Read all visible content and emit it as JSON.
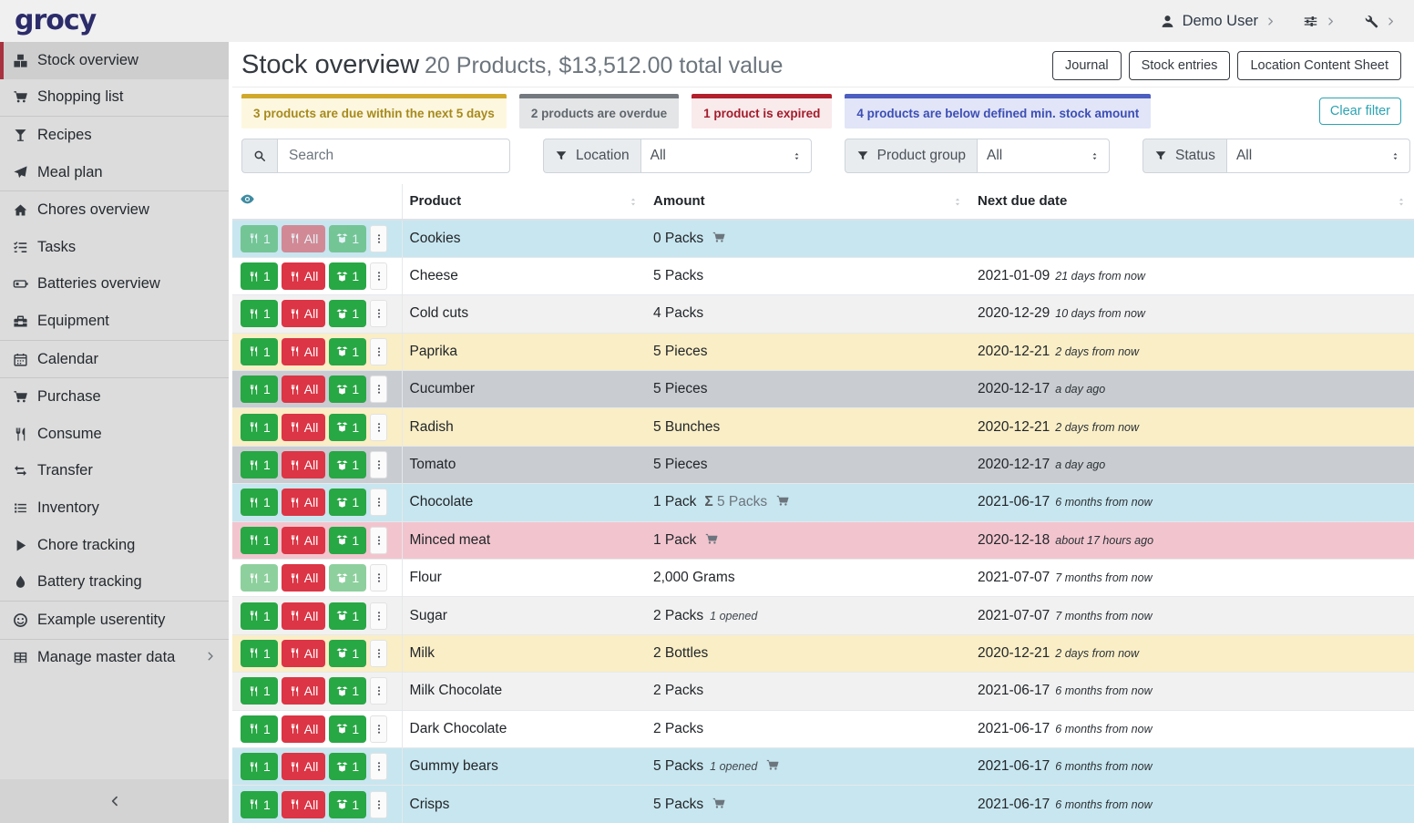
{
  "navbar": {
    "logo": "grocy",
    "user": "Demo User"
  },
  "sidebar": {
    "groups": [
      [
        {
          "label": "Stock overview",
          "icon": "boxes",
          "active": true
        },
        {
          "label": "Shopping list",
          "icon": "cart"
        }
      ],
      [
        {
          "label": "Recipes",
          "icon": "martini"
        },
        {
          "label": "Meal plan",
          "icon": "plane"
        }
      ],
      [
        {
          "label": "Chores overview",
          "icon": "home"
        },
        {
          "label": "Tasks",
          "icon": "tasks"
        },
        {
          "label": "Batteries overview",
          "icon": "battery"
        },
        {
          "label": "Equipment",
          "icon": "toolbox"
        }
      ],
      [
        {
          "label": "Calendar",
          "icon": "calendar"
        }
      ],
      [
        {
          "label": "Purchase",
          "icon": "cart"
        },
        {
          "label": "Consume",
          "icon": "utensils"
        },
        {
          "label": "Transfer",
          "icon": "transfer"
        },
        {
          "label": "Inventory",
          "icon": "list"
        },
        {
          "label": "Chore tracking",
          "icon": "play"
        },
        {
          "label": "Battery tracking",
          "icon": "drop"
        }
      ],
      [
        {
          "label": "Example userentity",
          "icon": "smiley"
        }
      ],
      [
        {
          "label": "Manage master data",
          "icon": "grid",
          "chevron": true
        }
      ]
    ]
  },
  "header": {
    "title": "Stock overview",
    "subtitle": "20 Products, $13,512.00 total value",
    "buttons": [
      "Journal",
      "Stock entries",
      "Location Content Sheet"
    ]
  },
  "alerts": [
    {
      "text": "3 products are due within the next 5 days",
      "type": "warning"
    },
    {
      "text": "2 products are overdue",
      "type": "secondary"
    },
    {
      "text": "1 product is expired",
      "type": "danger"
    },
    {
      "text": "4 products are below defined min. stock amount",
      "type": "primary"
    }
  ],
  "clear_filter_label": "Clear filter",
  "filters": {
    "search_placeholder": "Search",
    "groups": [
      {
        "key": "location",
        "label": "Location",
        "value": "All"
      },
      {
        "key": "product-group",
        "label": "Product group",
        "value": "All"
      },
      {
        "key": "status",
        "label": "Status",
        "value": "All"
      }
    ]
  },
  "table": {
    "headers": {
      "product": "Product",
      "amount": "Amount",
      "due": "Next due date"
    },
    "row_buttons": {
      "consume_one": "1",
      "consume_all": "All",
      "open_one": "1"
    },
    "rows": [
      {
        "product": "Cookies",
        "amount": "0 Packs",
        "cart": true,
        "bg": "info",
        "faded": [
          "c1",
          "call",
          "o1"
        ],
        "date": "",
        "rel": ""
      },
      {
        "product": "Cheese",
        "amount": "5 Packs",
        "bg": "white",
        "date": "2021-01-09",
        "rel": "21 days from now"
      },
      {
        "product": "Cold cuts",
        "amount": "4 Packs",
        "bg": "stripe",
        "date": "2020-12-29",
        "rel": "10 days from now"
      },
      {
        "product": "Paprika",
        "amount": "5 Pieces",
        "bg": "warning",
        "date": "2020-12-21",
        "rel": "2 days from now"
      },
      {
        "product": "Cucumber",
        "amount": "5 Pieces",
        "bg": "secondary",
        "date": "2020-12-17",
        "rel": "a day ago"
      },
      {
        "product": "Radish",
        "amount": "5 Bunches",
        "bg": "warning",
        "date": "2020-12-21",
        "rel": "2 days from now"
      },
      {
        "product": "Tomato",
        "amount": "5 Pieces",
        "bg": "secondary",
        "date": "2020-12-17",
        "rel": "a day ago"
      },
      {
        "product": "Chocolate",
        "amount": "1 Pack",
        "sum": "5 Packs",
        "cart": true,
        "bg": "info",
        "date": "2021-06-17",
        "rel": "6 months from now"
      },
      {
        "product": "Minced meat",
        "amount": "1 Pack",
        "cart": true,
        "bg": "danger",
        "date": "2020-12-18",
        "rel": "about 17 hours ago"
      },
      {
        "product": "Flour",
        "amount": "2,000 Grams",
        "bg": "white",
        "faded": [
          "c1",
          "o1"
        ],
        "date": "2021-07-07",
        "rel": "7 months from now"
      },
      {
        "product": "Sugar",
        "amount": "2 Packs",
        "opened": "1 opened",
        "bg": "stripe",
        "date": "2021-07-07",
        "rel": "7 months from now"
      },
      {
        "product": "Milk",
        "amount": "2 Bottles",
        "bg": "warning",
        "date": "2020-12-21",
        "rel": "2 days from now"
      },
      {
        "product": "Milk Chocolate",
        "amount": "2 Packs",
        "bg": "stripe",
        "date": "2021-06-17",
        "rel": "6 months from now"
      },
      {
        "product": "Dark Chocolate",
        "amount": "2 Packs",
        "bg": "white",
        "date": "2021-06-17",
        "rel": "6 months from now"
      },
      {
        "product": "Gummy bears",
        "amount": "5 Packs",
        "opened": "1 opened",
        "cart": true,
        "bg": "info",
        "date": "2021-06-17",
        "rel": "6 months from now"
      },
      {
        "product": "Crisps",
        "amount": "5 Packs",
        "cart": true,
        "bg": "info",
        "date": "2021-06-17",
        "rel": "6 months from now"
      }
    ]
  },
  "colors": {
    "accent_red": "#a8323e",
    "logo_navy": "#2c2c6b",
    "button_green": "#28a745",
    "button_red": "#dc3545",
    "clear_filter_teal": "#2ba3b3",
    "row_below_min": "#c8e6ef",
    "row_due_soon": "#faeec6",
    "row_overdue": "#c9cdd2",
    "row_expired": "#f2c5ce"
  }
}
